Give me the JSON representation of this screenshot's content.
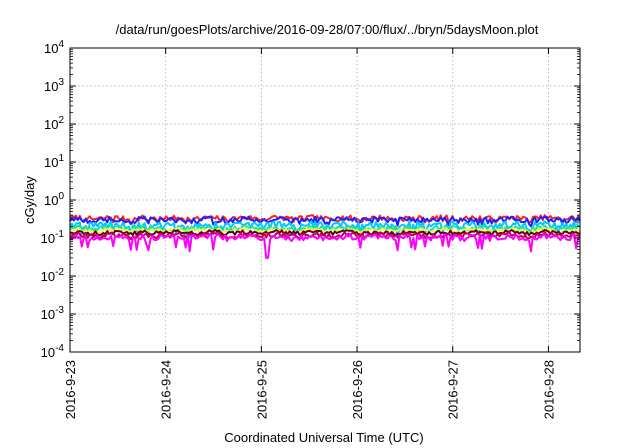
{
  "chart_data": {
    "type": "line",
    "title": "/data/run/goesPlots/archive/2016-09-28/07:00/flux/../bryn/5daysMoon.plot",
    "xlabel": "Coordinated Universal Time (UTC)",
    "ylabel": "cGy/day",
    "x_range_days": [
      0,
      5.33
    ],
    "x_ticks": [
      {
        "pos": 0,
        "label": "2016-9-23"
      },
      {
        "pos": 1,
        "label": "2016-9-24"
      },
      {
        "pos": 2,
        "label": "2016-9-25"
      },
      {
        "pos": 3,
        "label": "2016-9-26"
      },
      {
        "pos": 4,
        "label": "2016-9-27"
      },
      {
        "pos": 5,
        "label": "2016-9-28"
      }
    ],
    "y_scale": "log",
    "ylim": [
      0.0001,
      10000
    ],
    "y_ticks": [
      {
        "exp": "-4",
        "value": 0.0001
      },
      {
        "exp": "-3",
        "value": 0.001
      },
      {
        "exp": "-2",
        "value": 0.01
      },
      {
        "exp": "-1",
        "value": 0.1
      },
      {
        "exp": "0",
        "value": 1
      },
      {
        "exp": "1",
        "value": 10
      },
      {
        "exp": "2",
        "value": 100
      },
      {
        "exp": "3",
        "value": 1000
      },
      {
        "exp": "4",
        "value": 10000
      }
    ],
    "grid": true,
    "legend": "none",
    "series": [
      {
        "color": "#ff2020",
        "base": 0.33,
        "noise": 0.06,
        "dip": 0.1
      },
      {
        "color": "#2020ff",
        "base": 0.3,
        "noise": 0.06,
        "dip": 0.12
      },
      {
        "color": "#00c8ff",
        "base": 0.22,
        "noise": 0.05,
        "dip": 0.3
      },
      {
        "color": "#20e0a0",
        "base": 0.18,
        "noise": 0.03,
        "dip": 0.05
      },
      {
        "color": "#e0ff40",
        "base": 0.16,
        "noise": 0.02,
        "dip": 0.03
      },
      {
        "color": "#600020",
        "base": 0.14,
        "noise": 0.02,
        "dip": 0.03
      },
      {
        "color": "#c00050",
        "base": 0.12,
        "noise": 0.02,
        "dip": 0.03
      },
      {
        "color": "#ff00ff",
        "base": 0.105,
        "noise": 0.02,
        "dip": 0.35
      }
    ]
  }
}
